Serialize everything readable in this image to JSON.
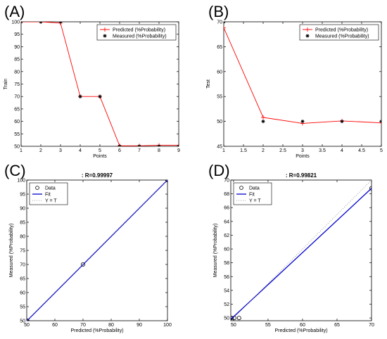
{
  "chart_data": [
    {
      "panel": "(A)",
      "type": "line",
      "xlabel": "Points",
      "ylabel": "Train",
      "xlim": [
        1,
        9
      ],
      "ylim": [
        50,
        100
      ],
      "xticks": [
        1,
        2,
        3,
        4,
        5,
        6,
        7,
        8,
        9
      ],
      "yticks": [
        50,
        55,
        60,
        65,
        70,
        75,
        80,
        85,
        90,
        95,
        100
      ],
      "legend_position": "top-right",
      "series": [
        {
          "name": "Predicted (%Probability)",
          "style": "red-line-plus",
          "color": "#ff0000",
          "x": [
            1,
            2,
            3,
            4,
            5,
            6,
            7,
            8,
            9
          ],
          "y": [
            100,
            100,
            99.5,
            70,
            70,
            50.2,
            50.2,
            50.4,
            50.4
          ]
        },
        {
          "name": "Measured (%Probability)",
          "style": "black-star",
          "color": "#000000",
          "x": [
            1,
            2,
            3,
            4,
            5,
            6,
            7,
            8,
            9
          ],
          "y": [
            100,
            100,
            100,
            70,
            70,
            50,
            50,
            50,
            50
          ]
        }
      ]
    },
    {
      "panel": "(B)",
      "type": "line",
      "xlabel": "Points",
      "ylabel": "Test",
      "xlim": [
        1,
        5
      ],
      "ylim": [
        45,
        70
      ],
      "xticks": [
        1,
        1.5,
        2,
        2.5,
        3,
        3.5,
        4,
        4.5,
        5
      ],
      "yticks": [
        45,
        50,
        55,
        60,
        65,
        70
      ],
      "legend_position": "top-right",
      "series": [
        {
          "name": "Predicted (%Probability)",
          "style": "red-line-plus",
          "color": "#ff0000",
          "x": [
            1,
            2,
            3,
            4,
            5
          ],
          "y": [
            68.8,
            50.8,
            49.6,
            50.1,
            49.7
          ]
        },
        {
          "name": "Measured (%Probability)",
          "style": "black-star",
          "color": "#000000",
          "x": [
            1,
            2,
            3,
            4,
            5
          ],
          "y": [
            70,
            50,
            50,
            50,
            50
          ]
        }
      ]
    },
    {
      "panel": "(C)",
      "type": "scatter",
      "title": ": R=0.99997",
      "xlabel": "Predicted (%Probability)",
      "ylabel": "Measured (%Probability)",
      "xlim": [
        50,
        100
      ],
      "ylim": [
        50,
        100
      ],
      "xticks": [
        50,
        60,
        70,
        80,
        90,
        100
      ],
      "yticks": [
        50,
        55,
        60,
        65,
        70,
        75,
        80,
        85,
        90,
        95,
        100
      ],
      "legend_position": "top-left",
      "series": [
        {
          "name": "Data",
          "style": "circle",
          "color": "#000000",
          "x": [
            50,
            50.2,
            70,
            100,
            100,
            100
          ],
          "y": [
            50,
            50,
            70,
            100,
            100,
            100
          ]
        },
        {
          "name": "Fit",
          "style": "blue-line",
          "color": "#0000cc",
          "x": [
            50,
            100
          ],
          "y": [
            49.9,
            100
          ]
        },
        {
          "name": "Y = T",
          "style": "dotted",
          "color": "#888888",
          "x": [
            50,
            100
          ],
          "y": [
            50,
            100
          ]
        }
      ]
    },
    {
      "panel": "(D)",
      "type": "scatter",
      "title": ": R=0.99821",
      "xlabel": "Predicted (%Probability)",
      "ylabel": "Measured (%Probability)",
      "xlim": [
        49.6,
        70
      ],
      "ylim": [
        49.6,
        70
      ],
      "xticks": [
        50,
        55,
        60,
        65,
        70
      ],
      "yticks": [
        50,
        52,
        54,
        56,
        58,
        60,
        62,
        64,
        66,
        68,
        70
      ],
      "legend_position": "top-left",
      "series": [
        {
          "name": "Data",
          "style": "circle",
          "color": "#000000",
          "x": [
            49.6,
            49.7,
            50.1,
            50.8,
            70
          ],
          "y": [
            50,
            50,
            50,
            50,
            68.8
          ]
        },
        {
          "name": "Fit",
          "style": "blue-line",
          "color": "#0000cc",
          "x": [
            49.6,
            70
          ],
          "y": [
            49.8,
            68.8
          ]
        },
        {
          "name": "Y = T",
          "style": "dotted",
          "color": "#888888",
          "x": [
            49.6,
            70
          ],
          "y": [
            49.6,
            70
          ]
        }
      ]
    }
  ]
}
